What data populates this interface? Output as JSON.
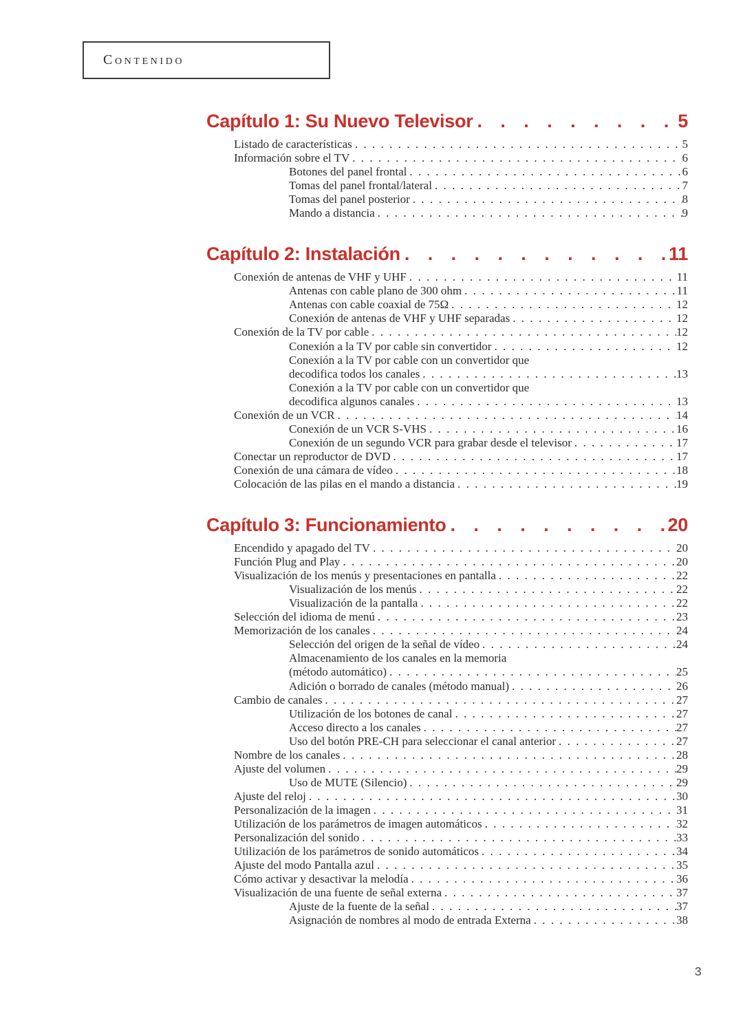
{
  "header": {
    "title": "Contenido"
  },
  "chapters": [
    {
      "title": "Capítulo 1: Su Nuevo Televisor",
      "page": "5",
      "entries": [
        {
          "level": 1,
          "label": "Listado de características",
          "page": "5"
        },
        {
          "level": 1,
          "label": "Información sobre el TV",
          "page": "6"
        },
        {
          "level": 2,
          "label": "Botones del panel frontal",
          "page": "6"
        },
        {
          "level": 2,
          "label": "Tomas del panel frontal/lateral",
          "page": "7"
        },
        {
          "level": 2,
          "label": "Tomas del panel posterior",
          "page": "8"
        },
        {
          "level": 2,
          "label": "Mando a distancia",
          "page": "9"
        }
      ]
    },
    {
      "title": "Capítulo 2: Instalación",
      "page": "11",
      "entries": [
        {
          "level": 1,
          "label": "Conexión de antenas de VHF y UHF",
          "page": "11"
        },
        {
          "level": 2,
          "label": "Antenas con cable plano de 300 ohm",
          "page": "11"
        },
        {
          "level": 2,
          "label": "Antenas con cable coaxial de 75Ω",
          "page": "12"
        },
        {
          "level": 2,
          "label": "Conexión de antenas de VHF y UHF separadas",
          "page": "12"
        },
        {
          "level": 1,
          "label": "Conexión de la TV por cable",
          "page": "12"
        },
        {
          "level": 2,
          "label": "Conexión a la TV por cable sin convertidor",
          "page": "12"
        },
        {
          "level": 2,
          "label": "Conexión a la TV por cable con un convertidor que",
          "nopage": true
        },
        {
          "level": 3,
          "label": "decodifica todos los canales",
          "page": "13"
        },
        {
          "level": 2,
          "label": "Conexión a la TV por cable con un convertidor que",
          "nopage": true
        },
        {
          "level": 3,
          "label": "decodifica algunos canales",
          "page": "13"
        },
        {
          "level": 1,
          "label": "Conexión de un VCR",
          "page": "14"
        },
        {
          "level": 2,
          "label": "Conexión de un VCR S-VHS",
          "page": "16"
        },
        {
          "level": 2,
          "label": "Conexión de un segundo VCR para grabar desde el televisor",
          "page": "17"
        },
        {
          "level": 1,
          "label": "Conectar un reproductor de DVD",
          "page": "17"
        },
        {
          "level": 1,
          "label": "Conexión de una cámara de vídeo",
          "page": "18"
        },
        {
          "level": 1,
          "label": "Colocación de las pilas en el mando a distancia",
          "page": "19"
        }
      ]
    },
    {
      "title": "Capítulo 3: Funcionamiento",
      "page": "20",
      "entries": [
        {
          "level": 1,
          "label": "Encendido y apagado del TV",
          "page": "20"
        },
        {
          "level": 1,
          "label": "Función Plug and Play",
          "page": "20"
        },
        {
          "level": 1,
          "label": "Visualización de los menús y presentaciones en pantalla",
          "page": "22"
        },
        {
          "level": 2,
          "label": "Visualización de los menús",
          "page": "22"
        },
        {
          "level": 2,
          "label": "Visualización de la pantalla",
          "page": "22"
        },
        {
          "level": 1,
          "label": "Selección del idioma de menú",
          "page": "23"
        },
        {
          "level": 1,
          "label": "Memorización de los canales",
          "page": "24"
        },
        {
          "level": 2,
          "label": "Selección del origen de la señal de vídeo",
          "page": "24"
        },
        {
          "level": 2,
          "label": "Almacenamiento de los canales en la memoria",
          "nopage": true
        },
        {
          "level": 3,
          "label": "(método automático)",
          "page": "25"
        },
        {
          "level": 2,
          "label": "Adición o borrado de canales (método manual)",
          "page": "26"
        },
        {
          "level": 1,
          "label": "Cambio de canales",
          "page": "27"
        },
        {
          "level": 2,
          "label": "Utilización de los botones de canal",
          "page": "27"
        },
        {
          "level": 2,
          "label": "Acceso directo a los canales",
          "page": "27"
        },
        {
          "level": 2,
          "label": "Uso del botón PRE-CH para seleccionar el canal anterior",
          "page": "27"
        },
        {
          "level": 1,
          "label": "Nombre de los canales",
          "page": "28"
        },
        {
          "level": 1,
          "label": "Ajuste del volumen",
          "page": "29"
        },
        {
          "level": 2,
          "label": "Uso de MUTE (Silencio)",
          "page": "29"
        },
        {
          "level": 1,
          "label": "Ajuste del reloj",
          "page": "30"
        },
        {
          "level": 1,
          "label": "Personalización de la imagen",
          "page": "31"
        },
        {
          "level": 1,
          "label": "Utilización de los parámetros de imagen automáticos",
          "page": "32"
        },
        {
          "level": 1,
          "label": "Personalización del sonido",
          "page": "33"
        },
        {
          "level": 1,
          "label": "Utilización de los parámetros de sonido automáticos",
          "page": "34"
        },
        {
          "level": 1,
          "label": "Ajuste del modo Pantalla azul",
          "page": "35"
        },
        {
          "level": 1,
          "label": "Cómo activar y desactivar la melodía",
          "page": "36"
        },
        {
          "level": 1,
          "label": "Visualización de una fuente de señal externa",
          "page": "37"
        },
        {
          "level": 2,
          "label": "Ajuste de la fuente de la señal",
          "page": "37"
        },
        {
          "level": 2,
          "label": "Asignación de nombres al modo de entrada Externa",
          "page": "38"
        }
      ]
    }
  ],
  "pageNumber": "3",
  "dotFill": ". . . . . . . . . . . . . . . . . . . . . . . . . . . . . . . . . . . . . . . . . . . . . . . . . . . . . . . . . . . . . . . . . . . . . . . . . . . . . . . . . . . . ."
}
